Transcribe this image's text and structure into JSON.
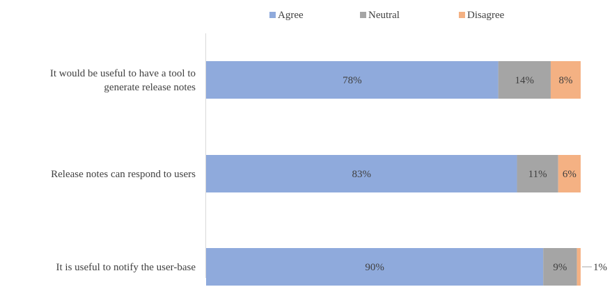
{
  "chart_data": {
    "type": "bar",
    "orientation": "horizontal",
    "stacked": true,
    "percent_stacked": true,
    "categories": [
      "It would be useful to have a tool to generate release notes",
      "Release notes can respond to users",
      "It is useful to notify the user-base"
    ],
    "category_lines": [
      [
        "It would be useful to have a tool to",
        "generate release notes"
      ],
      [
        "Release notes can respond to users"
      ],
      [
        "It is useful to notify the user-base"
      ]
    ],
    "series": [
      {
        "name": "Agree",
        "color": "#8faadc",
        "values": [
          78,
          83,
          90
        ],
        "labels": [
          "78%",
          "83%",
          "90%"
        ]
      },
      {
        "name": "Neutral",
        "color": "#a5a5a5",
        "values": [
          14,
          11,
          9
        ],
        "labels": [
          "14%",
          "11%",
          "9%"
        ]
      },
      {
        "name": "Disagree",
        "color": "#f4b183",
        "values": [
          8,
          6,
          1
        ],
        "labels": [
          "8%",
          "6%",
          "1%"
        ]
      }
    ],
    "xlim": [
      0,
      100
    ],
    "legend_position": "top",
    "grid": false
  }
}
